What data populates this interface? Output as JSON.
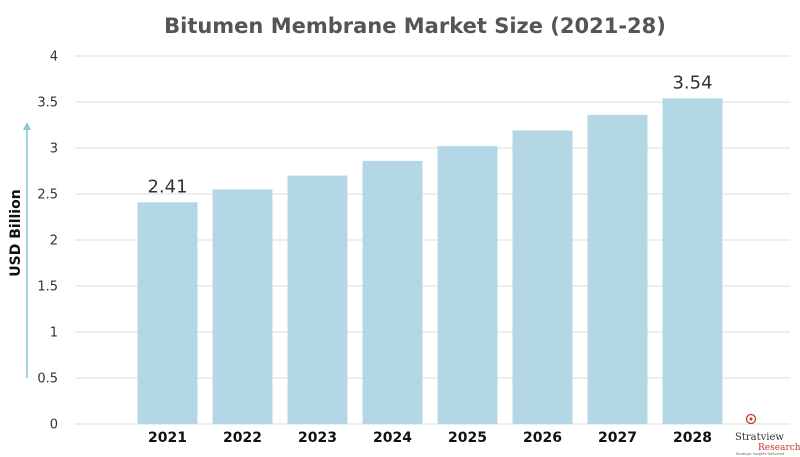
{
  "chart_data": {
    "type": "bar",
    "title": "Bitumen Membrane Market Size (2021-28)",
    "xlabel": "",
    "ylabel": "USD Billion",
    "categories": [
      "2021",
      "2022",
      "2023",
      "2024",
      "2025",
      "2026",
      "2027",
      "2028"
    ],
    "values": [
      2.41,
      2.55,
      2.7,
      2.86,
      3.02,
      3.19,
      3.36,
      3.54
    ],
    "data_labels": [
      {
        "index": 0,
        "text": "2.41"
      },
      {
        "index": 7,
        "text": "3.54"
      }
    ],
    "ylim": [
      0,
      4
    ],
    "yticks": [
      "0",
      "0.5",
      "1",
      "1.5",
      "2",
      "2.5",
      "3",
      "3.5",
      "4"
    ],
    "grid": true,
    "legend": "none",
    "bar_color": "#b4d7e5",
    "grid_color": "#dddddd",
    "arrow_color": "#8cc3dc"
  },
  "logo": {
    "name": "Stratview",
    "sub": "Research",
    "tagline": "Strategic Insights Delivered"
  }
}
